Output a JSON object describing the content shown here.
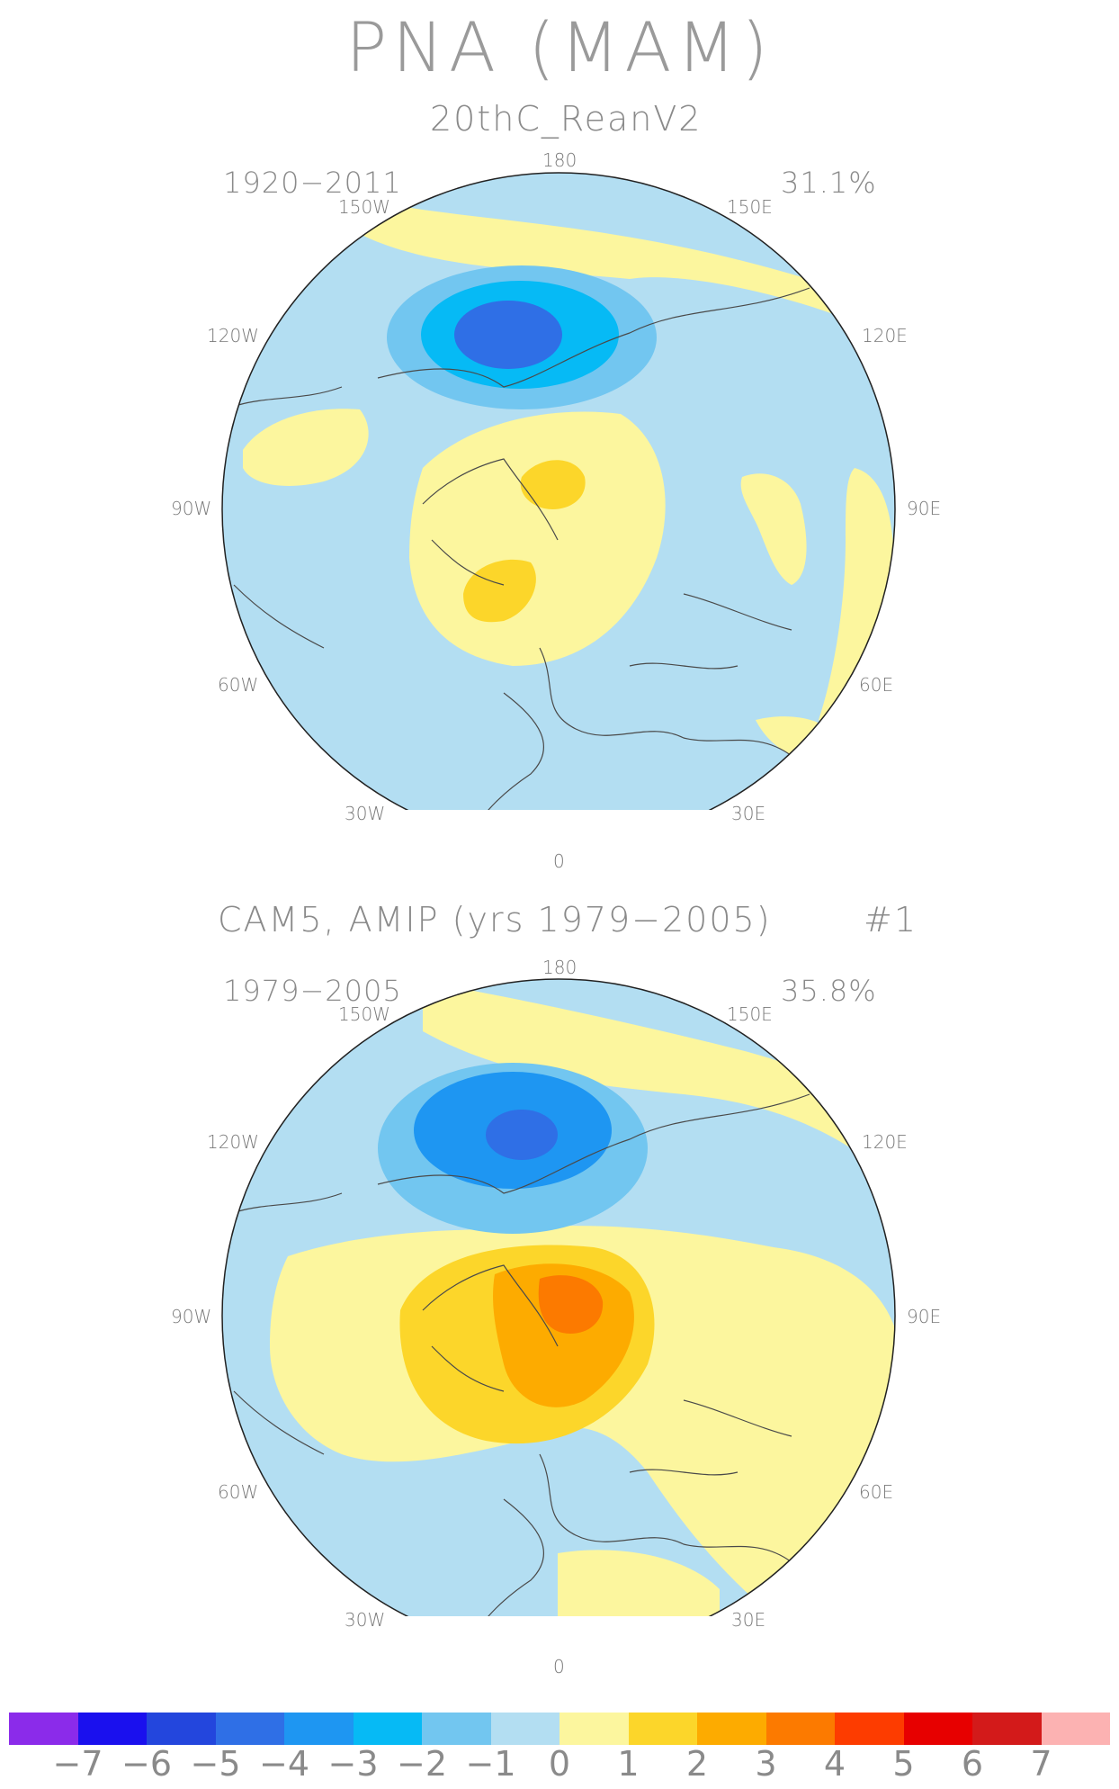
{
  "title": "PNA (MAM)",
  "panels": [
    {
      "subtitle": "20thC_ReanV2",
      "subtitle_extra": "",
      "period": "1920−2011",
      "variance": "31.1%",
      "lon_labels": [
        "180",
        "150W",
        "150E",
        "120W",
        "120E",
        "90W",
        "90E",
        "60W",
        "60E",
        "30W",
        "30E",
        "0"
      ]
    },
    {
      "subtitle": "CAM5, AMIP (yrs 1979−2005)",
      "subtitle_extra": "#1",
      "period": "1979−2005",
      "variance": "35.8%",
      "lon_labels": [
        "180",
        "150W",
        "150E",
        "120W",
        "120E",
        "90W",
        "90E",
        "60W",
        "60E",
        "30W",
        "30E",
        "0"
      ]
    }
  ],
  "colorbar": {
    "colors": [
      "#8b2bea",
      "#1a10ee",
      "#2346dd",
      "#2f6fe6",
      "#1e96f2",
      "#06baf5",
      "#72c6f0",
      "#b3def2",
      "#fcf69e",
      "#fcd62a",
      "#fdab00",
      "#fc7a00",
      "#fd3c00",
      "#e70000",
      "#d31a1a",
      "#fcb2b2"
    ],
    "labels": [
      "−7",
      "−6",
      "−5",
      "−4",
      "−3",
      "−2",
      "−1",
      "0",
      "1",
      "2",
      "3",
      "4",
      "5",
      "6",
      "7"
    ]
  }
}
